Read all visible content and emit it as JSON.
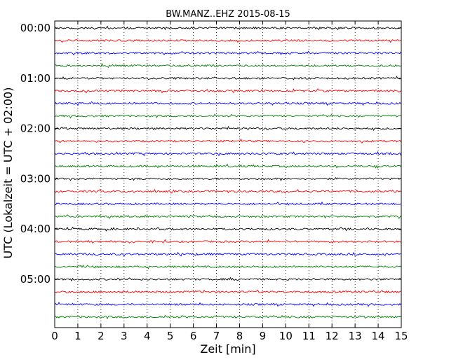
{
  "chart_data": {
    "type": "line",
    "title": "BW.MANZ..EHZ 2015-08-15",
    "xlabel": "Zeit  [min]",
    "ylabel": "UTC (Lokalzeit = UTC + 02:00)",
    "xlim": [
      0,
      15
    ],
    "x_ticks": [
      "0",
      "1",
      "2",
      "3",
      "4",
      "5",
      "6",
      "7",
      "8",
      "9",
      "10",
      "11",
      "12",
      "13",
      "14",
      "15"
    ],
    "y_ticks": [
      "00:00",
      "01:00",
      "02:00",
      "03:00",
      "04:00",
      "05:00"
    ],
    "grid": "vertical-dotted",
    "trace_colors": [
      "#000000",
      "#ff0000",
      "#0000ff",
      "#007f00"
    ],
    "traces": [
      {
        "start": "00:00"
      },
      {
        "start": "00:15"
      },
      {
        "start": "00:30"
      },
      {
        "start": "00:45"
      },
      {
        "start": "01:00"
      },
      {
        "start": "01:15"
      },
      {
        "start": "01:30"
      },
      {
        "start": "01:45"
      },
      {
        "start": "02:00"
      },
      {
        "start": "02:15"
      },
      {
        "start": "02:30"
      },
      {
        "start": "02:45"
      },
      {
        "start": "03:00"
      },
      {
        "start": "03:15"
      },
      {
        "start": "03:30"
      },
      {
        "start": "03:45"
      },
      {
        "start": "04:00"
      },
      {
        "start": "04:15"
      },
      {
        "start": "04:30"
      },
      {
        "start": "04:45"
      },
      {
        "start": "05:00"
      },
      {
        "start": "05:15"
      },
      {
        "start": "05:30"
      },
      {
        "start": "05:45"
      }
    ]
  }
}
